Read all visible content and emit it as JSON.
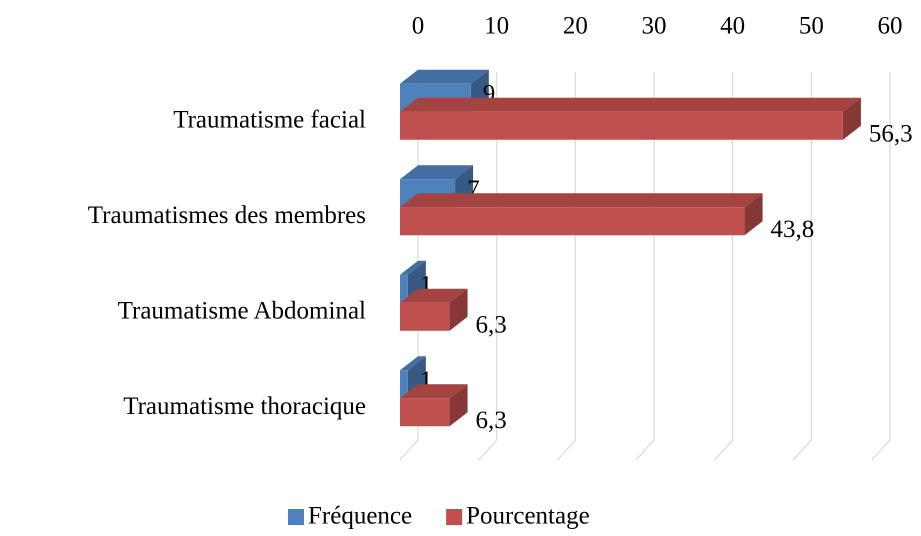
{
  "chart_data": {
    "type": "bar",
    "orientation": "horizontal",
    "categories": [
      "Traumatisme facial",
      "Traumatismes des membres",
      "Traumatisme Abdominal",
      "Traumatisme thoracique"
    ],
    "series": [
      {
        "name": "Fréquence",
        "color": "#4f81bd",
        "values": [
          9,
          7,
          1,
          1
        ]
      },
      {
        "name": "Pourcentage",
        "color": "#c0504d",
        "values": [
          56.3,
          43.8,
          6.3,
          6.3
        ],
        "value_labels": [
          "56,3",
          "43,8",
          "6,3",
          "6,3"
        ]
      }
    ],
    "xlim": [
      0,
      60
    ],
    "xticks": [
      0,
      10,
      20,
      30,
      40,
      50,
      60
    ],
    "grid": true,
    "legend": "bottom"
  }
}
